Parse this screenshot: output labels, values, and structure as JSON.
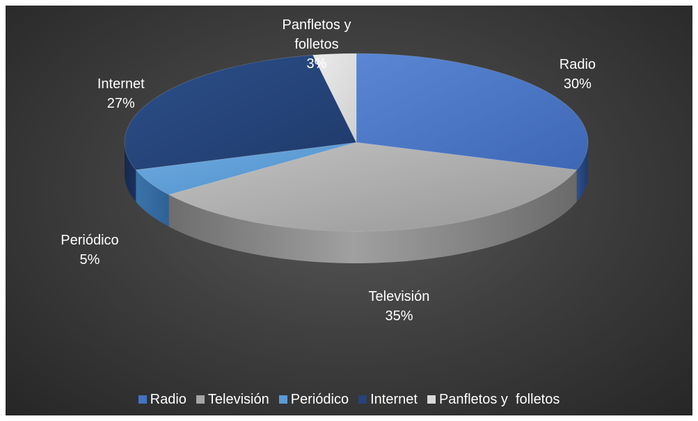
{
  "chart_data": {
    "type": "pie",
    "style": "3d-pie",
    "categories": [
      "Radio",
      "Televisión",
      "Periódico",
      "Internet",
      "Panfletos y  folletos"
    ],
    "values": [
      30,
      35,
      5,
      27,
      3
    ],
    "labels": [
      {
        "lines": [
          "Radio",
          "30%"
        ]
      },
      {
        "lines": [
          "Televisión",
          "35%"
        ]
      },
      {
        "lines": [
          "Periódico",
          "5%"
        ]
      },
      {
        "lines": [
          "Internet",
          "27%"
        ]
      },
      {
        "lines": [
          "Panfletos y",
          "folletos",
          "3%"
        ]
      }
    ],
    "colors": [
      "#4472c4",
      "#a5a5a5",
      "#5b9bd5",
      "#264478",
      "#d9d9d9"
    ],
    "legend_position": "bottom"
  }
}
